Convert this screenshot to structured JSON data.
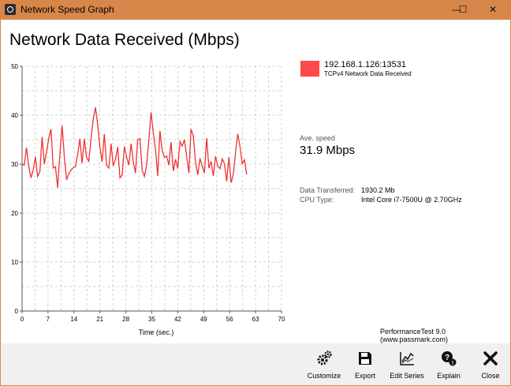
{
  "window": {
    "title": "Network Speed Graph",
    "icon": "app-icon",
    "controls": {
      "minimize": "—",
      "maximize": "☐",
      "close": "✕"
    }
  },
  "header": {
    "title": "Network Data Received (Mbps)"
  },
  "legend": {
    "color": "#ff4848",
    "host": "192.168.1.126:13531",
    "description": "TCPv4 Network Data Received"
  },
  "stats": {
    "ave_label": "Ave. speed",
    "ave_value": "31.9 Mbps",
    "rows": [
      {
        "key": "Data Transferred:",
        "value": "1930.2 Mb"
      },
      {
        "key": "CPU Type:",
        "value": "Intel Core i7-7500U @ 2.70GHz"
      }
    ]
  },
  "branding": "PerformanceTest 9.0 (www.passmark.com)",
  "toolbar": [
    {
      "label": "Customize",
      "icon": "gears-icon"
    },
    {
      "label": "Export",
      "icon": "save-icon"
    },
    {
      "label": "Edit Series",
      "icon": "chart-line-icon"
    },
    {
      "label": "Explain",
      "icon": "help-icon"
    },
    {
      "label": "Close",
      "icon": "close-icon"
    }
  ],
  "chart_data": {
    "type": "line",
    "xlabel": "Time (sec.)",
    "ylabel": "",
    "xlim": [
      0,
      70
    ],
    "ylim": [
      0,
      50
    ],
    "xticks": [
      0,
      7,
      14,
      21,
      28,
      35,
      42,
      49,
      56,
      63,
      70
    ],
    "yticks": [
      0,
      10,
      20,
      30,
      40,
      50
    ],
    "grid": true,
    "series": [
      {
        "color": "#ee3333",
        "x": [
          0,
          0.6,
          1.2,
          1.8,
          2.4,
          3.0,
          3.6,
          4.2,
          4.8,
          5.4,
          6.0,
          6.6,
          7.2,
          7.8,
          8.4,
          9.0,
          9.6,
          10.2,
          10.8,
          11.4,
          12.0,
          12.6,
          13.2,
          13.8,
          14.4,
          15.0,
          15.6,
          16.2,
          16.8,
          17.4,
          18.0,
          18.6,
          19.2,
          19.8,
          20.4,
          21.0,
          21.6,
          22.2,
          22.8,
          23.4,
          24.0,
          24.6,
          25.2,
          25.8,
          26.4,
          27.0,
          27.6,
          28.2,
          28.8,
          29.4,
          30.0,
          30.6,
          31.2,
          31.8,
          32.4,
          33.0,
          33.6,
          34.2,
          34.8,
          35.4,
          36.0,
          36.6,
          37.2,
          37.8,
          38.4,
          39.0,
          39.6,
          40.2,
          40.8,
          41.4,
          42.0,
          42.6,
          43.2,
          43.8,
          44.4,
          45.0,
          45.6,
          46.2,
          46.8,
          47.4,
          48.0,
          48.6,
          49.2,
          49.8,
          50.4,
          51.0,
          51.6,
          52.2,
          52.8,
          53.4,
          54.0,
          54.6,
          55.2,
          55.8,
          56.4,
          57.0,
          57.6,
          58.2,
          58.8,
          59.4,
          60.0,
          60.6
        ],
        "y": [
          30,
          29.8,
          33.4,
          29.5,
          27.2,
          28.8,
          31.5,
          27.5,
          28.5,
          35.6,
          30,
          32.5,
          35.2,
          37.2,
          29.2,
          29.5,
          25.2,
          32,
          37.9,
          31.4,
          26.8,
          28,
          28.8,
          29.3,
          29.5,
          32,
          35.2,
          30.2,
          35.2,
          31.3,
          30.6,
          35.2,
          39.2,
          41.6,
          38,
          33.5,
          30.5,
          36.2,
          29.7,
          29.2,
          34.2,
          29.7,
          31,
          33.5,
          27.2,
          27.8,
          33.6,
          31.5,
          29.8,
          34.2,
          30.5,
          28.2,
          35,
          35.2,
          28.8,
          27.5,
          29.8,
          34.8,
          40.6,
          36.4,
          33,
          27.6,
          36.8,
          32.8,
          31.4,
          31.7,
          29.8,
          34.5,
          28.6,
          31,
          29.1,
          34.6,
          33.7,
          35,
          31.6,
          28.2,
          37.2,
          35.8,
          30.4,
          27.8,
          31.2,
          29.6,
          28.2,
          35.3,
          29.2,
          30.6,
          27.6,
          31.6,
          29.6,
          29.1,
          31.1,
          30.1,
          26.5,
          31.4,
          26.2,
          28,
          32.4,
          36.2,
          33.5,
          30.1,
          30.9,
          27.9
        ]
      }
    ]
  }
}
